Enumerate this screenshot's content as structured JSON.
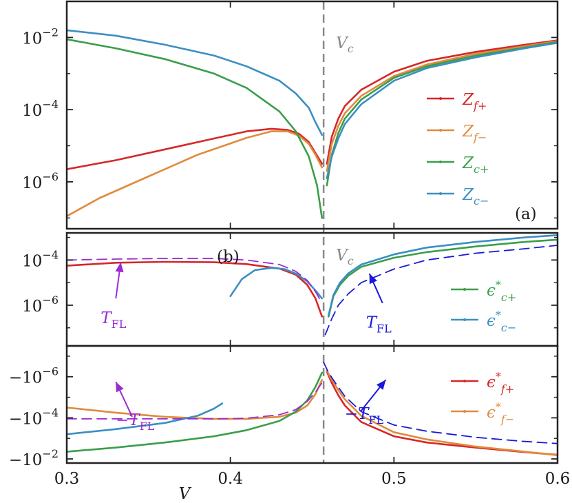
{
  "chart_data": {
    "type": "line",
    "xlabel": "V",
    "xlim": [
      0.3,
      0.6
    ],
    "x_ticks": [
      "0.3",
      "0.4",
      "0.5",
      "0.6"
    ],
    "critical_line": {
      "x": 0.457,
      "label": "Vc"
    },
    "colors": {
      "red": "#d62728",
      "orange": "#e08a3c",
      "green": "#3a9e4a",
      "blue": "#3a8fc2",
      "purple": "#9a2bd4",
      "navy": "#1a1ad6",
      "gray": "#888888"
    },
    "panels": [
      {
        "id": "a",
        "label": "(a)",
        "ylog_range": [
          -7.3,
          -1.0
        ],
        "y_ticks": [
          {
            "exp": -2,
            "label": "10",
            "sup": "−2"
          },
          {
            "exp": -4,
            "label": "10",
            "sup": "−4"
          },
          {
            "exp": -6,
            "label": "10",
            "sup": "−6"
          }
        ],
        "legend": [
          {
            "name": "Z_{f+}",
            "main": "Z",
            "sub": "f+",
            "color": "red"
          },
          {
            "name": "Z_{f−}",
            "main": "Z",
            "sub": "f−",
            "color": "orange"
          },
          {
            "name": "Z_{c+}",
            "main": "Z",
            "sub": "c+",
            "color": "green"
          },
          {
            "name": "Z_{c−}",
            "main": "Z",
            "sub": "c−",
            "color": "blue"
          }
        ],
        "series": [
          {
            "name": "Z_f+ (V<Vc)",
            "color": "red",
            "x": [
              0.3,
              0.33,
              0.36,
              0.39,
              0.41,
              0.425,
              0.435,
              0.442,
              0.448,
              0.452,
              0.456
            ],
            "log10y": [
              -5.65,
              -5.4,
              -5.1,
              -4.8,
              -4.6,
              -4.53,
              -4.56,
              -4.67,
              -4.9,
              -5.2,
              -5.5
            ]
          },
          {
            "name": "Z_f− (V<Vc)",
            "color": "orange",
            "x": [
              0.3,
              0.32,
              0.35,
              0.38,
              0.41,
              0.425,
              0.435,
              0.442,
              0.448,
              0.452,
              0.456
            ],
            "log10y": [
              -6.95,
              -6.45,
              -5.85,
              -5.25,
              -4.78,
              -4.6,
              -4.6,
              -4.72,
              -4.95,
              -5.25,
              -5.6
            ]
          },
          {
            "name": "Z_c+ (V<Vc)",
            "color": "green",
            "x": [
              0.3,
              0.33,
              0.36,
              0.39,
              0.41,
              0.43,
              0.44,
              0.448,
              0.453,
              0.456
            ],
            "log10y": [
              -2.05,
              -2.3,
              -2.6,
              -3.0,
              -3.4,
              -4.05,
              -4.6,
              -5.3,
              -6.1,
              -7.0
            ]
          },
          {
            "name": "Z_c− (V<Vc)",
            "color": "blue",
            "x": [
              0.3,
              0.33,
              0.36,
              0.39,
              0.41,
              0.43,
              0.44,
              0.448,
              0.452,
              0.456
            ],
            "log10y": [
              -1.8,
              -1.95,
              -2.2,
              -2.5,
              -2.8,
              -3.2,
              -3.55,
              -3.95,
              -4.35,
              -4.7
            ]
          },
          {
            "name": "Z_f+ (V>Vc)",
            "color": "red",
            "x": [
              0.459,
              0.462,
              0.466,
              0.47,
              0.48,
              0.5,
              0.52,
              0.55,
              0.58,
              0.6
            ],
            "log10y": [
              -5.5,
              -4.75,
              -4.25,
              -3.9,
              -3.45,
              -2.95,
              -2.65,
              -2.4,
              -2.2,
              -2.08
            ]
          },
          {
            "name": "Z_f− (V>Vc)",
            "color": "orange",
            "x": [
              0.459,
              0.462,
              0.466,
              0.47,
              0.48,
              0.5,
              0.52,
              0.55,
              0.58,
              0.6
            ],
            "log10y": [
              -5.7,
              -4.95,
              -4.45,
              -4.1,
              -3.62,
              -3.07,
              -2.75,
              -2.45,
              -2.24,
              -2.1
            ]
          },
          {
            "name": "Z_c+ (V>Vc)",
            "color": "green",
            "x": [
              0.459,
              0.462,
              0.466,
              0.47,
              0.48,
              0.5,
              0.52,
              0.55,
              0.58,
              0.6
            ],
            "log10y": [
              -6.1,
              -5.25,
              -4.65,
              -4.25,
              -3.72,
              -3.12,
              -2.8,
              -2.5,
              -2.28,
              -2.12
            ]
          },
          {
            "name": "Z_c− (V>Vc)",
            "color": "blue",
            "x": [
              0.459,
              0.462,
              0.466,
              0.47,
              0.48,
              0.5,
              0.52,
              0.55,
              0.58,
              0.6
            ],
            "log10y": [
              -5.9,
              -5.3,
              -4.8,
              -4.4,
              -3.85,
              -3.2,
              -2.85,
              -2.55,
              -2.3,
              -2.15
            ]
          }
        ]
      },
      {
        "id": "b-top",
        "label": "(b)",
        "ylog_range": [
          -7.8,
          -2.8
        ],
        "y_ticks": [
          {
            "exp": -4,
            "label": "10",
            "sup": "−4"
          },
          {
            "exp": -6,
            "label": "10",
            "sup": "−6"
          }
        ],
        "legend": [
          {
            "name": "ε*_{c+}",
            "main": "ϵ",
            "sup": "*",
            "sub": "c+",
            "color": "green"
          },
          {
            "name": "ε*_{c−}",
            "main": "ϵ",
            "sup": "*",
            "sub": "c−",
            "color": "blue"
          }
        ],
        "annotations": [
          {
            "text": "T",
            "sub": "FL",
            "color": "purple",
            "ax": 0.33,
            "ay": -5.7,
            "tx": 0.333,
            "ty": -4.1
          },
          {
            "text": "T",
            "sub": "FL",
            "color": "navy",
            "ax": 0.493,
            "ay": -5.9,
            "tx": 0.485,
            "ty": -4.6
          }
        ],
        "series": [
          {
            "name": "ε*_f+ (V<Vc)",
            "color": "red",
            "x": [
              0.3,
              0.33,
              0.36,
              0.39,
              0.41,
              0.43,
              0.44,
              0.447,
              0.452,
              0.456
            ],
            "log10y": [
              -4.25,
              -4.12,
              -4.08,
              -4.1,
              -4.18,
              -4.38,
              -4.65,
              -5.1,
              -5.7,
              -6.5
            ],
            "style": "solid"
          },
          {
            "name": "ε*_c− (V<Vc)",
            "color": "blue",
            "x": [
              0.4,
              0.407,
              0.415,
              0.425,
              0.433,
              0.44,
              0.447,
              0.452,
              0.456
            ],
            "log10y": [
              -5.6,
              -4.85,
              -4.45,
              -4.35,
              -4.4,
              -4.6,
              -4.95,
              -5.35,
              -5.7
            ],
            "style": "solid"
          },
          {
            "name": "T_FL (V<Vc)",
            "color": "purple",
            "x": [
              0.3,
              0.33,
              0.36,
              0.39,
              0.41,
              0.43,
              0.44,
              0.447,
              0.452,
              0.456
            ],
            "log10y": [
              -4.0,
              -3.96,
              -3.93,
              -3.93,
              -4.0,
              -4.2,
              -4.5,
              -4.9,
              -5.4,
              -5.9
            ],
            "style": "dashed"
          },
          {
            "name": "ε*_c+ (V>Vc)",
            "color": "green",
            "x": [
              0.46,
              0.463,
              0.467,
              0.472,
              0.48,
              0.5,
              0.52,
              0.55,
              0.58,
              0.6
            ],
            "log10y": [
              -6.5,
              -5.6,
              -5.1,
              -4.7,
              -4.3,
              -3.9,
              -3.65,
              -3.4,
              -3.2,
              -3.1
            ],
            "style": "solid"
          },
          {
            "name": "ε*_c− (V>Vc)",
            "color": "blue",
            "x": [
              0.46,
              0.463,
              0.467,
              0.472,
              0.48,
              0.5,
              0.52,
              0.55,
              0.58,
              0.6
            ],
            "log10y": [
              -6.45,
              -5.55,
              -5.0,
              -4.6,
              -4.2,
              -3.75,
              -3.45,
              -3.2,
              -3.0,
              -2.9
            ],
            "style": "solid"
          },
          {
            "name": "T_FL (V>Vc)",
            "color": "navy",
            "x": [
              0.458,
              0.462,
              0.466,
              0.472,
              0.48,
              0.5,
              0.52,
              0.55,
              0.58,
              0.6
            ],
            "log10y": [
              -7.3,
              -6.6,
              -6.0,
              -5.5,
              -5.0,
              -4.4,
              -4.0,
              -3.7,
              -3.5,
              -3.35
            ],
            "style": "dashed"
          }
        ]
      },
      {
        "id": "b-bottom",
        "ylog_range": [
          -7.5,
          -1.8
        ],
        "negative": true,
        "y_ticks": [
          {
            "exp": -6,
            "label": "−10",
            "sup": "−6"
          },
          {
            "exp": -4,
            "label": "−10",
            "sup": "−4"
          },
          {
            "exp": -2,
            "label": "−10",
            "sup": "−2"
          }
        ],
        "legend": [
          {
            "name": "ε*_{f+}",
            "main": "ϵ",
            "sup": "*",
            "sub": "f+",
            "color": "red"
          },
          {
            "name": "ε*_{f−}",
            "main": "ϵ",
            "sup": "*",
            "sub": "f−",
            "color": "orange"
          }
        ],
        "annotations": [
          {
            "text": "−T",
            "sub": "FL",
            "color": "purple",
            "ax": 0.34,
            "ay": -4.05,
            "tx": 0.33,
            "ty": -5.75
          },
          {
            "text": "−T",
            "sub": "FL",
            "color": "navy",
            "ax": 0.48,
            "ay": -4.35,
            "tx": 0.495,
            "ty": -5.85
          }
        ],
        "series": [
          {
            "name": "ε*_f+ (V>Vc)",
            "color": "red",
            "x": [
              0.459,
              0.462,
              0.466,
              0.47,
              0.48,
              0.5,
              0.52,
              0.55,
              0.58,
              0.6
            ],
            "log10y": [
              -6.25,
              -5.7,
              -5.1,
              -4.6,
              -3.8,
              -3.1,
              -2.8,
              -2.55,
              -2.33,
              -2.2
            ],
            "style": "solid"
          },
          {
            "name": "ε*_f− (V<Vc)",
            "color": "orange",
            "x": [
              0.3,
              0.33,
              0.36,
              0.39,
              0.41,
              0.43,
              0.44,
              0.447,
              0.452,
              0.456
            ],
            "log10y": [
              -4.5,
              -4.25,
              -4.05,
              -3.95,
              -3.95,
              -4.05,
              -4.25,
              -4.6,
              -5.15,
              -5.85
            ],
            "style": "solid"
          },
          {
            "name": "ε*_c− (V<Vc)",
            "color": "blue",
            "x": [
              0.3,
              0.33,
              0.36,
              0.38,
              0.39,
              0.395
            ],
            "log10y": [
              -3.2,
              -3.45,
              -3.75,
              -4.1,
              -4.45,
              -4.7
            ],
            "style": "solid"
          },
          {
            "name": "ε*_c+ (V<Vc)",
            "color": "green",
            "x": [
              0.3,
              0.33,
              0.36,
              0.39,
              0.41,
              0.43,
              0.44,
              0.447,
              0.452,
              0.456
            ],
            "log10y": [
              -2.35,
              -2.55,
              -2.8,
              -3.1,
              -3.4,
              -3.85,
              -4.3,
              -4.85,
              -5.5,
              -6.2
            ],
            "style": "solid"
          },
          {
            "name": "ε*_f− (V>Vc)",
            "color": "orange",
            "x": [
              0.459,
              0.462,
              0.466,
              0.47,
              0.48,
              0.5,
              0.52,
              0.55,
              0.58,
              0.6
            ],
            "log10y": [
              -6.3,
              -5.85,
              -5.35,
              -4.9,
              -4.1,
              -3.3,
              -2.95,
              -2.6,
              -2.35,
              -2.18
            ],
            "style": "solid"
          },
          {
            "name": "−T_FL (V<Vc)",
            "color": "purple",
            "x": [
              0.3,
              0.33,
              0.36,
              0.39,
              0.41,
              0.43,
              0.44,
              0.447,
              0.452,
              0.456
            ],
            "log10y": [
              -3.95,
              -3.95,
              -3.95,
              -3.95,
              -3.98,
              -4.15,
              -4.4,
              -4.8,
              -5.25,
              -5.7
            ],
            "style": "dashed"
          },
          {
            "name": "−T_FL (V>Vc)",
            "color": "navy",
            "x": [
              0.457,
              0.46,
              0.465,
              0.47,
              0.48,
              0.5,
              0.52,
              0.55,
              0.58,
              0.6
            ],
            "log10y": [
              -6.7,
              -6.2,
              -5.6,
              -5.05,
              -4.3,
              -3.65,
              -3.35,
              -3.05,
              -2.85,
              -2.75
            ],
            "style": "dashed"
          }
        ]
      }
    ]
  }
}
